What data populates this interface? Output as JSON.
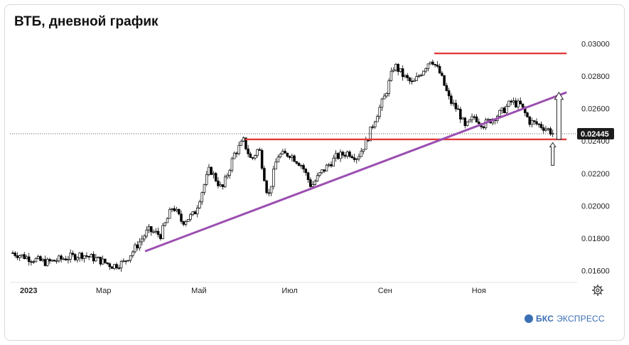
{
  "title": "ВТБ, дневной график",
  "brand": {
    "prefix": "БКС",
    "suffix": "ЭКСПРЕСС"
  },
  "chart_data": {
    "type": "candlestick",
    "y_ticks": [
      "0.03000",
      "0.02800",
      "0.02600",
      "0.02400",
      "0.02200",
      "0.02000",
      "0.01800",
      "0.01600"
    ],
    "y_tick_values": [
      0.03,
      0.028,
      0.026,
      0.024,
      0.022,
      0.02,
      0.018,
      0.016
    ],
    "ylim": [
      0.0155,
      0.0305
    ],
    "x_ticks": [
      "2023",
      "Мар",
      "Май",
      "Июл",
      "Сен",
      "Ноя"
    ],
    "last_price": "0.02445",
    "last_value": 0.02445,
    "close_path": [
      [
        0,
        0.0171
      ],
      [
        10,
        0.0168
      ],
      [
        22,
        0.0165
      ],
      [
        35,
        0.0168
      ],
      [
        45,
        0.017
      ],
      [
        55,
        0.0167
      ],
      [
        65,
        0.0163
      ],
      [
        72,
        0.0165
      ],
      [
        78,
        0.0172
      ],
      [
        88,
        0.0185
      ],
      [
        96,
        0.0182
      ],
      [
        104,
        0.02
      ],
      [
        110,
        0.019
      ],
      [
        118,
        0.0195
      ],
      [
        128,
        0.0223
      ],
      [
        136,
        0.021
      ],
      [
        144,
        0.0232
      ],
      [
        150,
        0.024
      ],
      [
        155,
        0.0228
      ],
      [
        160,
        0.0236
      ],
      [
        166,
        0.0205
      ],
      [
        172,
        0.0231
      ],
      [
        180,
        0.0232
      ],
      [
        188,
        0.0225
      ],
      [
        194,
        0.0212
      ],
      [
        200,
        0.022
      ],
      [
        210,
        0.023
      ],
      [
        218,
        0.0233
      ],
      [
        224,
        0.023
      ],
      [
        230,
        0.024
      ],
      [
        236,
        0.0255
      ],
      [
        242,
        0.0268
      ],
      [
        248,
        0.0287
      ],
      [
        254,
        0.028
      ],
      [
        260,
        0.0275
      ],
      [
        266,
        0.0283
      ],
      [
        272,
        0.0291
      ],
      [
        278,
        0.0281
      ],
      [
        284,
        0.0265
      ],
      [
        290,
        0.0258
      ],
      [
        294,
        0.0248
      ],
      [
        300,
        0.0255
      ],
      [
        306,
        0.025
      ],
      [
        312,
        0.0254
      ],
      [
        318,
        0.0258
      ],
      [
        324,
        0.0264
      ],
      [
        330,
        0.0262
      ],
      [
        336,
        0.0252
      ],
      [
        342,
        0.025
      ],
      [
        348,
        0.0247
      ],
      [
        352,
        0.0244
      ]
    ],
    "supports": [
      {
        "kind": "horizontal",
        "value": 0.0294,
        "x_from": 274,
        "x_to": 360,
        "color": "#e23b3b"
      },
      {
        "kind": "horizontal",
        "value": 0.0241,
        "x_from": 151,
        "x_to": 360,
        "color": "#e23b3b"
      }
    ],
    "trendline": {
      "from": [
        86,
        0.0172
      ],
      "to": [
        360,
        0.027
      ],
      "color": "#9b4fb0"
    },
    "arrows": [
      {
        "direction": "up",
        "x": 355,
        "from": 0.0241,
        "to": 0.027,
        "size": "large"
      },
      {
        "direction": "up",
        "x": 351,
        "from": 0.0225,
        "to": 0.0239,
        "size": "small"
      }
    ],
    "x_tick_positions": [
      0,
      59,
      121,
      180,
      242,
      303
    ],
    "x_range": [
      0,
      365
    ],
    "grid": false,
    "legend": "none"
  }
}
